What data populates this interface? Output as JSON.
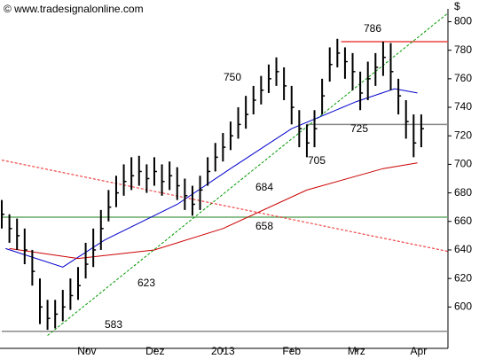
{
  "chart_data": {
    "type": "ohlc",
    "title": "© www.tradesignalonline.com",
    "y_axis_label": "$",
    "x": [
      0,
      2,
      4,
      6,
      8,
      10,
      12,
      14,
      16,
      18,
      20,
      22,
      24,
      26,
      28,
      30,
      32,
      34,
      36,
      38,
      40,
      42,
      44,
      46,
      48,
      50,
      52,
      54,
      56,
      58,
      60,
      62,
      64,
      66,
      68,
      70,
      72,
      74,
      76,
      78,
      80,
      82,
      84,
      86,
      88,
      90,
      92,
      94,
      96,
      98,
      100,
      102,
      104,
      106,
      108,
      110
    ],
    "high": [
      675,
      665,
      662,
      655,
      640,
      620,
      605,
      605,
      612,
      620,
      628,
      645,
      655,
      668,
      682,
      692,
      700,
      705,
      706,
      700,
      705,
      700,
      702,
      698,
      690,
      685,
      692,
      705,
      715,
      722,
      730,
      740,
      748,
      755,
      762,
      770,
      775,
      768,
      755,
      738,
      728,
      738,
      760,
      782,
      788,
      782,
      778,
      765,
      772,
      778,
      786,
      785,
      760,
      745,
      735,
      735
    ],
    "low": [
      655,
      645,
      640,
      630,
      615,
      588,
      584,
      585,
      590,
      598,
      605,
      620,
      628,
      640,
      660,
      670,
      678,
      682,
      685,
      680,
      685,
      678,
      682,
      675,
      668,
      664,
      668,
      685,
      695,
      702,
      710,
      718,
      725,
      735,
      742,
      750,
      755,
      745,
      728,
      712,
      705,
      712,
      735,
      758,
      768,
      760,
      752,
      738,
      745,
      755,
      762,
      752,
      735,
      718,
      705,
      712
    ],
    "close": [
      665,
      655,
      650,
      640,
      625,
      600,
      592,
      595,
      600,
      608,
      615,
      630,
      640,
      655,
      670,
      680,
      688,
      692,
      695,
      690,
      695,
      688,
      692,
      685,
      678,
      672,
      682,
      695,
      705,
      712,
      720,
      728,
      735,
      745,
      752,
      760,
      765,
      755,
      740,
      725,
      715,
      725,
      748,
      770,
      778,
      772,
      765,
      750,
      760,
      768,
      775,
      765,
      748,
      730,
      715,
      725
    ],
    "color": "#000000",
    "lines": [
      {
        "x": [
          1,
          16,
          27,
          46,
          60,
          76,
          93,
          103,
          109
        ],
        "values": [
          641,
          628,
          647,
          672,
          697,
          725,
          744,
          753,
          750
        ],
        "color": "#0000cc"
      },
      {
        "x": [
          2,
          20,
          40,
          58,
          80,
          100,
          109
        ],
        "values": [
          641,
          634,
          640,
          655,
          682,
          697,
          701
        ],
        "color": "#cc0000"
      }
    ],
    "trendlines": [
      {
        "x": [
          12,
          117
        ],
        "values": [
          580,
          806
        ],
        "color": "#009900"
      },
      {
        "x": [
          0,
          117
        ],
        "values": [
          703,
          639
        ],
        "color": "#ee2222"
      }
    ],
    "levels": [
      {
        "x": [
          0,
          117
        ],
        "value": 583,
        "color": "#888888"
      },
      {
        "x": [
          0,
          117
        ],
        "value": 663,
        "color": "#66aa66"
      },
      {
        "x": [
          80,
          117
        ],
        "value": 728,
        "color": "#888888"
      },
      {
        "x": [
          89,
          117
        ],
        "value": 786,
        "color": "#ee4444"
      }
    ],
    "annotations": [
      583,
      623,
      658,
      684,
      705,
      725,
      750,
      786
    ],
    "xlim": [
      0,
      117
    ],
    "xticks": [
      {
        "value": 22.3,
        "label": "Nov"
      },
      {
        "value": 40.2,
        "label": "Dez"
      },
      {
        "value": 58,
        "label": "2013"
      },
      {
        "value": 76,
        "label": "Feb"
      },
      {
        "value": 93,
        "label": "Mrz"
      },
      {
        "value": 109.3,
        "label": "Apr"
      }
    ],
    "ylim": [
      571,
      809
    ],
    "yticks": [
      600,
      620,
      640,
      660,
      680,
      700,
      720,
      740,
      760,
      780,
      800
    ]
  }
}
